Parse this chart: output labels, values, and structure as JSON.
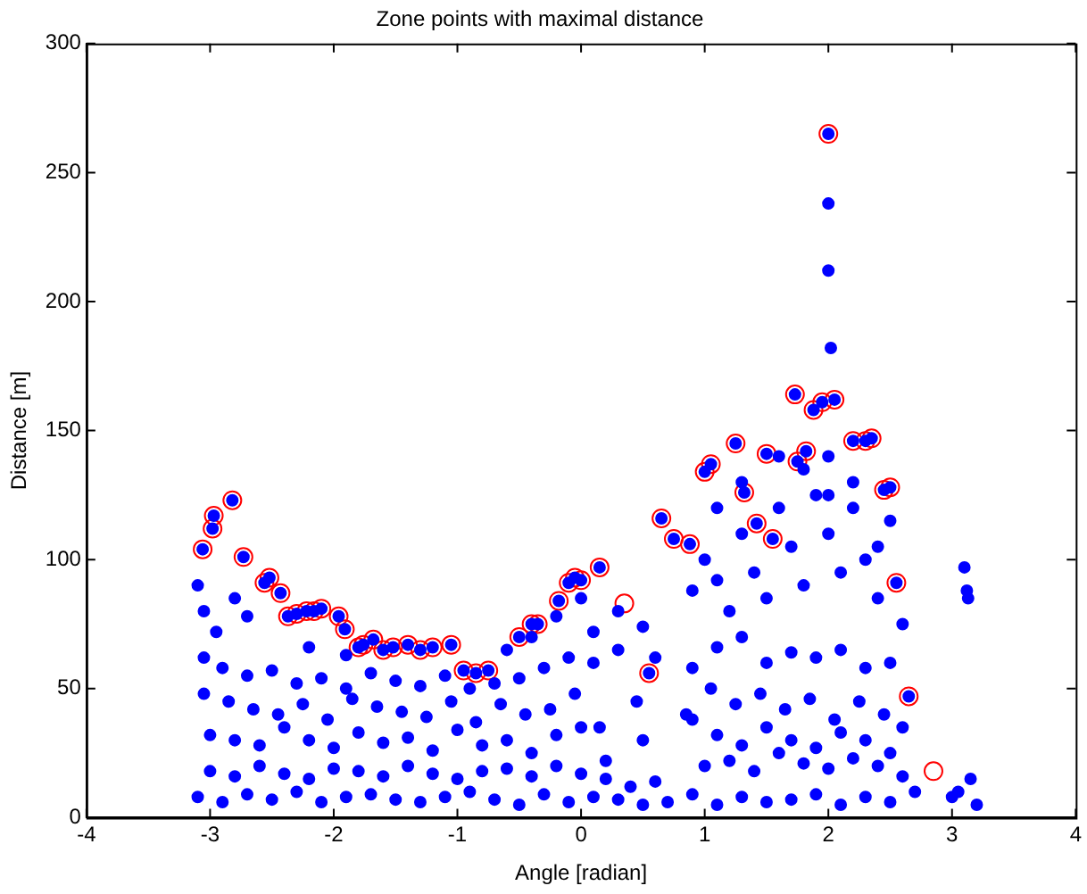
{
  "chart_data": {
    "type": "scatter",
    "title": "Zone points with maximal distance",
    "xlabel": "Angle [radian]",
    "ylabel": "Distance [m]",
    "xlim": [
      -4,
      4
    ],
    "xticks": [
      -4,
      -3,
      -2,
      -1,
      0,
      1,
      2,
      3,
      4
    ],
    "ylim": [
      0,
      300
    ],
    "yticks": [
      0,
      50,
      100,
      150,
      200,
      250,
      300
    ],
    "grid": false,
    "legend": false,
    "marker": "circle",
    "series": [
      {
        "color": "#0000ff",
        "x": [
          -3.1,
          -2.9,
          -2.7,
          -2.5,
          -2.3,
          -2.1,
          -1.9,
          -1.7,
          -1.5,
          -1.3,
          -1.1,
          -0.9,
          -0.7,
          -0.5,
          -0.3,
          -0.1,
          0.1,
          0.3,
          0.5,
          0.7,
          0.9,
          1.1,
          1.3,
          1.5,
          1.7,
          1.9,
          2.1,
          2.3,
          2.5,
          2.7,
          3.0,
          3.2
        ],
        "values": [
          8,
          6,
          9,
          7,
          10,
          6,
          8,
          9,
          7,
          6,
          8,
          10,
          7,
          5,
          9,
          6,
          8,
          7,
          5,
          6,
          9,
          5,
          8,
          6,
          7,
          9,
          5,
          8,
          6,
          10,
          8,
          5
        ]
      },
      {
        "color": "#0000ff",
        "x": [
          -3.0,
          -2.8,
          -2.6,
          -2.4,
          -2.2,
          -2.0,
          -1.8,
          -1.6,
          -1.4,
          -1.2,
          -1.0,
          -0.8,
          -0.6,
          -0.4,
          -0.2,
          0.0,
          0.2,
          0.4,
          0.6,
          1.0,
          1.2,
          1.4,
          1.6,
          1.8,
          2.0,
          2.2,
          2.4,
          2.6
        ],
        "values": [
          18,
          16,
          20,
          17,
          15,
          19,
          18,
          16,
          20,
          17,
          15,
          18,
          19,
          16,
          20,
          17,
          15,
          12,
          14,
          20,
          22,
          18,
          25,
          21,
          19,
          23,
          20,
          16
        ]
      },
      {
        "color": "#0000ff",
        "x": [
          -3.0,
          -2.8,
          -2.6,
          -2.4,
          -2.2,
          -2.0,
          -1.8,
          -1.6,
          -1.4,
          -1.2,
          -1.0,
          -0.8,
          -0.6,
          -0.4,
          -0.2,
          0.0,
          0.2,
          0.5,
          0.9,
          1.1,
          1.3,
          1.5,
          1.7,
          1.9,
          2.1,
          2.3,
          2.5
        ],
        "values": [
          32,
          30,
          28,
          35,
          30,
          27,
          33,
          29,
          31,
          26,
          34,
          28,
          30,
          25,
          32,
          35,
          22,
          30,
          38,
          32,
          28,
          35,
          30,
          27,
          33,
          30,
          25
        ]
      },
      {
        "color": "#0000ff",
        "x": [
          -3.05,
          -2.85,
          -2.65,
          -2.45,
          -2.25,
          -2.05,
          -1.85,
          -1.65,
          -1.45,
          -1.25,
          -1.05,
          -0.85,
          -0.65,
          -0.45,
          -0.25,
          -0.05,
          0.15,
          0.45,
          0.85,
          1.05,
          1.25,
          1.45,
          1.65,
          1.85,
          2.05,
          2.25,
          2.45,
          2.6
        ],
        "values": [
          48,
          45,
          42,
          40,
          44,
          38,
          46,
          43,
          41,
          39,
          45,
          37,
          44,
          40,
          42,
          48,
          35,
          45,
          40,
          50,
          44,
          48,
          42,
          46,
          38,
          45,
          40,
          35
        ]
      },
      {
        "color": "#0000ff",
        "x": [
          -3.05,
          -2.9,
          -2.7,
          -2.5,
          -2.3,
          -2.1,
          -1.9,
          -1.7,
          -1.5,
          -1.3,
          -1.1,
          -0.9,
          -0.7,
          -0.5,
          -0.3,
          -0.1,
          0.1,
          0.3,
          0.6,
          0.9,
          1.1,
          1.3,
          1.5,
          1.7,
          1.9,
          2.1,
          2.3,
          2.5
        ],
        "values": [
          62,
          58,
          55,
          57,
          52,
          54,
          50,
          56,
          53,
          51,
          55,
          50,
          52,
          54,
          58,
          62,
          60,
          65,
          62,
          58,
          66,
          70,
          60,
          64,
          62,
          65,
          58,
          60
        ]
      },
      {
        "color": "#0000ff",
        "x": [
          -3.05,
          -3.1,
          -2.95,
          -2.8,
          -2.7,
          -2.2,
          -1.9,
          -0.6,
          -0.4,
          -0.2,
          0.0,
          0.1,
          0.3,
          0.5,
          0.9,
          1.0,
          1.1,
          1.2,
          1.3,
          1.4,
          1.5,
          1.6,
          1.7,
          1.8,
          1.9,
          2.0,
          2.1,
          2.2,
          2.3,
          2.4,
          2.5,
          2.6,
          1.6,
          1.8,
          2.0,
          2.2,
          1.1,
          1.3,
          2.4,
          2.0,
          3.1,
          3.12,
          3.13,
          3.15,
          3.05,
          2.0,
          2.0,
          2.02
        ],
        "values": [
          80,
          90,
          72,
          85,
          78,
          66,
          63,
          65,
          70,
          78,
          85,
          72,
          80,
          74,
          88,
          100,
          92,
          80,
          110,
          95,
          85,
          120,
          105,
          90,
          125,
          110,
          95,
          120,
          100,
          85,
          115,
          75,
          140,
          135,
          140,
          130,
          120,
          130,
          105,
          125,
          97,
          88,
          85,
          15,
          10,
          238,
          212,
          182
        ]
      },
      {
        "color": "#0000ff",
        "x": [
          -3.06,
          -2.98,
          -2.97,
          -2.82,
          -2.73,
          -2.56,
          -2.52,
          -2.43,
          -2.37,
          -2.3,
          -2.22,
          -2.16,
          -2.1,
          -1.96,
          -1.91,
          -1.8,
          -1.76,
          -1.68,
          -1.6,
          -1.52,
          -1.4,
          -1.3,
          -1.2,
          -1.05,
          -0.95,
          -0.85,
          -0.75,
          -0.5,
          -0.4,
          -0.35,
          -0.18,
          -0.1,
          -0.05,
          0.0,
          0.15,
          0.55,
          0.65,
          0.75,
          0.88,
          1.0,
          1.05,
          1.25,
          1.32,
          1.42,
          1.5,
          1.55,
          1.75,
          1.73,
          1.82,
          1.88,
          1.95,
          2.0,
          2.05,
          2.2,
          2.3,
          2.35,
          2.45,
          2.5,
          2.55,
          2.65
        ],
        "values": [
          104,
          112,
          117,
          123,
          101,
          91,
          93,
          87,
          78,
          79,
          80,
          80,
          81,
          78,
          73,
          66,
          67,
          69,
          65,
          66,
          67,
          65,
          66,
          67,
          57,
          56,
          57,
          70,
          75,
          75,
          84,
          91,
          93,
          92,
          97,
          56,
          116,
          108,
          106,
          134,
          137,
          145,
          126,
          114,
          141,
          108,
          138,
          164,
          142,
          158,
          161,
          265,
          162,
          146,
          146,
          147,
          127,
          128,
          91,
          47
        ]
      },
      {
        "color": "#ff0000",
        "x": [
          -3.06,
          -2.98,
          -2.97,
          -2.82,
          -2.73,
          -2.56,
          -2.52,
          -2.43,
          -2.37,
          -2.3,
          -2.22,
          -2.16,
          -2.1,
          -1.96,
          -1.91,
          -1.8,
          -1.76,
          -1.68,
          -1.6,
          -1.52,
          -1.4,
          -1.3,
          -1.2,
          -1.05,
          -0.95,
          -0.85,
          -0.75,
          -0.5,
          -0.4,
          -0.35,
          -0.18,
          -0.1,
          -0.05,
          0.0,
          0.15,
          0.35,
          0.55,
          0.65,
          0.75,
          0.88,
          1.0,
          1.05,
          1.25,
          1.32,
          1.42,
          1.5,
          1.55,
          1.75,
          1.73,
          1.82,
          1.88,
          1.95,
          2.0,
          2.05,
          2.2,
          2.3,
          2.35,
          2.45,
          2.5,
          2.55,
          2.65,
          2.85
        ],
        "values": [
          104,
          112,
          117,
          123,
          101,
          91,
          93,
          87,
          78,
          79,
          80,
          80,
          81,
          78,
          73,
          66,
          67,
          69,
          65,
          66,
          67,
          65,
          66,
          67,
          57,
          56,
          57,
          70,
          75,
          75,
          84,
          91,
          93,
          92,
          97,
          83,
          56,
          116,
          108,
          106,
          134,
          137,
          145,
          126,
          114,
          141,
          108,
          138,
          164,
          142,
          158,
          161,
          265,
          162,
          146,
          146,
          147,
          127,
          128,
          91,
          47,
          18
        ]
      }
    ]
  }
}
